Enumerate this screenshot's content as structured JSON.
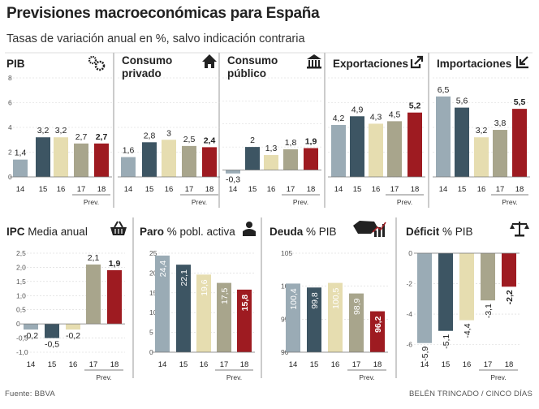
{
  "header": {
    "title": "Previsiones macroeconómicas para España",
    "subtitle": "Tasas de variación anual en %, salvo indicación contraria"
  },
  "footer": {
    "source": "Fuente: BBVA",
    "credit": "BELÉN TRINCADO / CINCO DÍAS"
  },
  "colors": {
    "c14": "#9aabb5",
    "c15": "#3d5563",
    "c16": "#e6ddb0",
    "c17": "#a8a58c",
    "c18": "#9e1b21",
    "divider": "#9a9a9a",
    "grid": "#d6d6d6"
  },
  "chart_data": [
    {
      "type": "bar",
      "title": "PIB",
      "title2": "",
      "unit": "",
      "icon": "gears-icon",
      "categories": [
        "14",
        "15",
        "16",
        "17",
        "18"
      ],
      "values": [
        1.4,
        3.2,
        3.2,
        2.7,
        2.7
      ],
      "labels": [
        "1,4",
        "3,2",
        "3,2",
        "2,7",
        "2,7"
      ],
      "ylim": [
        0,
        8
      ],
      "yticks": [
        0,
        2,
        4,
        6,
        8
      ],
      "ytick_labels": [
        "0",
        "2",
        "4",
        "6",
        "8"
      ],
      "baseline": 0,
      "label_mode": "above",
      "prev_label": "Prev."
    },
    {
      "type": "bar",
      "title": "Consumo",
      "title2": "privado",
      "unit": "",
      "icon": "house-icon",
      "categories": [
        "14",
        "15",
        "16",
        "17",
        "18"
      ],
      "values": [
        1.6,
        2.8,
        3.0,
        2.5,
        2.4
      ],
      "labels": [
        "1,6",
        "2,8",
        "3",
        "2,5",
        "2,4"
      ],
      "ylim": [
        0,
        8
      ],
      "baseline": 0,
      "label_mode": "above",
      "prev_label": "Prev."
    },
    {
      "type": "bar",
      "title": "Consumo",
      "title2": "público",
      "unit": "",
      "icon": "public-building-icon",
      "categories": [
        "14",
        "15",
        "16",
        "17",
        "18"
      ],
      "values": [
        -0.3,
        2.0,
        1.3,
        1.8,
        1.9
      ],
      "labels": [
        "-0,3",
        "2",
        "1,3",
        "1,8",
        "1,9"
      ],
      "ylim": [
        -0.6,
        8
      ],
      "baseline": 0,
      "label_mode": "above",
      "prev_label": "Prev."
    },
    {
      "type": "bar",
      "title": "Exportaciones",
      "title2": "",
      "unit": "",
      "icon": "arrow-out-icon",
      "categories": [
        "14",
        "15",
        "16",
        "17",
        "18"
      ],
      "values": [
        4.2,
        4.9,
        4.3,
        4.5,
        5.2
      ],
      "labels": [
        "4,2",
        "4,9",
        "4,3",
        "4,5",
        "5,2"
      ],
      "ylim": [
        0,
        8
      ],
      "baseline": 0,
      "label_mode": "above",
      "prev_label": "Prev."
    },
    {
      "type": "bar",
      "title": "Importaciones",
      "title2": "",
      "unit": "",
      "icon": "arrow-in-icon",
      "categories": [
        "14",
        "15",
        "16",
        "17",
        "18"
      ],
      "values": [
        6.5,
        5.6,
        3.2,
        3.8,
        5.5
      ],
      "labels": [
        "6,5",
        "5,6",
        "3,2",
        "3,8",
        "5,5"
      ],
      "ylim": [
        0,
        8
      ],
      "baseline": 0,
      "label_mode": "above",
      "prev_label": "Prev."
    },
    {
      "type": "bar",
      "title": "IPC",
      "title2": "",
      "unit": "Media anual",
      "icon": "basket-icon",
      "categories": [
        "14",
        "15",
        "16",
        "17",
        "18"
      ],
      "values": [
        -0.2,
        -0.5,
        -0.2,
        2.1,
        1.9
      ],
      "labels": [
        "-0,2",
        "-0,5",
        "-0,2",
        "2,1",
        "1,9"
      ],
      "ylim": [
        -1.0,
        2.5
      ],
      "yticks": [
        -1,
        -0.5,
        0,
        0.5,
        1,
        1.5,
        2,
        2.5
      ],
      "ytick_labels": [
        "-1,0",
        "-0,5",
        "0",
        "0,5",
        "1,0",
        "1,5",
        "2,0",
        "2,5"
      ],
      "baseline": 0,
      "label_mode": "outside",
      "prev_label": "Prev."
    },
    {
      "type": "bar",
      "title": "Paro",
      "title2": "",
      "unit": "% pobl. activa",
      "icon": "person-icon",
      "categories": [
        "14",
        "15",
        "16",
        "17",
        "18"
      ],
      "values": [
        24.4,
        22.1,
        19.6,
        17.5,
        15.8
      ],
      "labels": [
        "24,4",
        "22,1",
        "19,6",
        "17,5",
        "15,8"
      ],
      "ylim": [
        0,
        25
      ],
      "yticks": [
        0,
        5,
        10,
        15,
        20,
        25
      ],
      "ytick_labels": [
        "0",
        "5",
        "10",
        "15",
        "20",
        "25"
      ],
      "baseline": 0,
      "label_mode": "inside-vertical",
      "prev_label": "Prev."
    },
    {
      "type": "bar",
      "title": "Deuda",
      "title2": "",
      "unit": "% PIB",
      "icon": "spain-map-chart-icon",
      "categories": [
        "14",
        "15",
        "16",
        "17",
        "18"
      ],
      "values": [
        100.4,
        99.8,
        100.5,
        98.9,
        96.2
      ],
      "labels": [
        "100,4",
        "99,8",
        "100,5",
        "98,9",
        "96,2"
      ],
      "ylim": [
        90,
        105
      ],
      "yticks": [
        90,
        95,
        100,
        105
      ],
      "ytick_labels": [
        "90",
        "95",
        "100",
        "105"
      ],
      "baseline": 90,
      "label_mode": "inside-vertical",
      "prev_label": "Prev."
    },
    {
      "type": "bar",
      "title": "Déficit",
      "title2": "",
      "unit": "% PIB",
      "icon": "scales-icon",
      "categories": [
        "14",
        "15",
        "16",
        "17",
        "18"
      ],
      "values": [
        -5.9,
        -5.1,
        -4.4,
        -3.1,
        -2.2
      ],
      "labels": [
        "-5,9",
        "-5,1",
        "-4,4",
        "-3,1",
        "-2,2"
      ],
      "ylim": [
        -6.5,
        0
      ],
      "yticks": [
        -6,
        -4,
        -2,
        0
      ],
      "ytick_labels": [
        "-6",
        "-4",
        "-2",
        "0"
      ],
      "baseline": 0,
      "label_mode": "below-vertical",
      "prev_label": "Prev."
    }
  ]
}
